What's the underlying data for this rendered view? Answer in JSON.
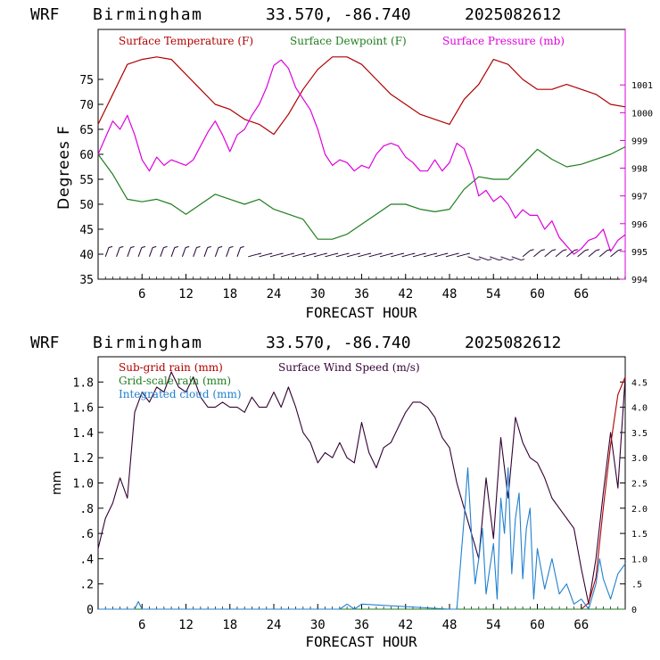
{
  "chart_data": [
    {
      "type": "line",
      "header": {
        "model": "WRF",
        "station": "Birmingham",
        "coords": "33.570, -86.740",
        "run": "2025082612"
      },
      "xlabel": "FORECAST HOUR",
      "ylabel": "Degrees F",
      "xlim": [
        0,
        72
      ],
      "xticks": [
        "6",
        "12",
        "18",
        "24",
        "30",
        "36",
        "42",
        "48",
        "54",
        "60",
        "66"
      ],
      "ylim": [
        35,
        85
      ],
      "yticks": [
        "35",
        "40",
        "45",
        "50",
        "55",
        "60",
        "65",
        "70",
        "75"
      ],
      "y2lim": [
        994,
        1003
      ],
      "y2ticks": [
        "994",
        "995",
        "996",
        "997",
        "998",
        "999",
        "1000",
        "1001"
      ],
      "colors": {
        "temp": "#b00000",
        "dew": "#1e7e1e",
        "pres": "#dd00dd",
        "wind": "#220033",
        "axes": "#000000"
      },
      "series": [
        {
          "name": "Surface Temperature (F)",
          "axis": "left",
          "x": [
            0,
            2,
            4,
            6,
            8,
            10,
            12,
            14,
            16,
            18,
            20,
            22,
            24,
            26,
            28,
            30,
            32,
            34,
            36,
            38,
            40,
            42,
            44,
            46,
            48,
            50,
            52,
            54,
            56,
            58,
            60,
            62,
            64,
            66,
            68,
            70,
            72
          ],
          "values": [
            66,
            72,
            78,
            79,
            79.5,
            79,
            76,
            73,
            70,
            69,
            67,
            66,
            64,
            68,
            73,
            77,
            79.5,
            79.5,
            78,
            75,
            72,
            70,
            68,
            67,
            66,
            71,
            74,
            79,
            78,
            75,
            73,
            73,
            74,
            73,
            72,
            70,
            69.5
          ]
        },
        {
          "name": "Surface Dewpoint (F)",
          "axis": "left",
          "x": [
            0,
            2,
            4,
            6,
            8,
            10,
            12,
            14,
            16,
            18,
            20,
            22,
            24,
            26,
            28,
            30,
            32,
            34,
            36,
            38,
            40,
            42,
            44,
            46,
            48,
            50,
            52,
            54,
            56,
            58,
            60,
            62,
            64,
            66,
            68,
            70,
            72
          ],
          "values": [
            60,
            56,
            51,
            50.5,
            51,
            50,
            48,
            50,
            52,
            51,
            50,
            51,
            49,
            48,
            47,
            43,
            43,
            44,
            46,
            48,
            50,
            50,
            49,
            48.5,
            49,
            53,
            55.5,
            55,
            55,
            58,
            61,
            59,
            57.5,
            58,
            59,
            60,
            61.5
          ]
        },
        {
          "name": "Surface Pressure (mb)",
          "axis": "right",
          "x": [
            0,
            1,
            2,
            3,
            4,
            5,
            6,
            7,
            8,
            9,
            10,
            11,
            12,
            13,
            14,
            15,
            16,
            17,
            18,
            19,
            20,
            21,
            22,
            23,
            24,
            25,
            26,
            27,
            28,
            29,
            30,
            31,
            32,
            33,
            34,
            35,
            36,
            37,
            38,
            39,
            40,
            41,
            42,
            43,
            44,
            45,
            46,
            47,
            48,
            49,
            50,
            51,
            52,
            53,
            54,
            55,
            56,
            57,
            58,
            59,
            60,
            61,
            62,
            63,
            64,
            65,
            66,
            67,
            68,
            69,
            70,
            71,
            72
          ],
          "values": [
            998.5,
            999.1,
            999.7,
            999.4,
            999.9,
            999.2,
            998.3,
            997.9,
            998.4,
            998.1,
            998.3,
            998.2,
            998.1,
            998.3,
            998.8,
            999.3,
            999.7,
            999.2,
            998.6,
            999.2,
            999.4,
            999.9,
            1000.3,
            1000.9,
            1001.7,
            1001.9,
            1001.6,
            1000.9,
            1000.5,
            1000.1,
            999.4,
            998.5,
            998.1,
            998.3,
            998.2,
            997.9,
            998.1,
            998.0,
            998.5,
            998.8,
            998.9,
            998.8,
            998.4,
            998.2,
            997.9,
            997.9,
            998.3,
            997.9,
            998.2,
            998.9,
            998.7,
            998.0,
            997.0,
            997.2,
            996.8,
            997.0,
            996.7,
            996.2,
            996.5,
            996.3,
            996.3,
            995.8,
            996.1,
            995.5,
            995.2,
            994.9,
            995.1,
            995.4,
            995.5,
            995.8,
            995.0,
            995.4,
            995.6
          ]
        }
      ],
      "wind_barbs_note": "",
      "legend": [
        {
          "label": "Surface Temperature (F)",
          "color": "#b00000"
        },
        {
          "label": "Surface Dewpoint (F)",
          "color": "#1e7e1e"
        },
        {
          "label": "Surface Pressure (mb)",
          "color": "#dd00dd"
        }
      ]
    },
    {
      "type": "line",
      "header": {
        "model": "WRF",
        "station": "Birmingham",
        "coords": "33.570, -86.740",
        "run": "2025082612"
      },
      "xlabel": "FORECAST HOUR",
      "ylabel": "mm",
      "xlim": [
        0,
        72
      ],
      "xticks": [
        "6",
        "12",
        "18",
        "24",
        "30",
        "36",
        "42",
        "48",
        "54",
        "60",
        "66"
      ],
      "ylim": [
        0,
        2.0
      ],
      "yticks": [
        "0",
        ".2",
        ".4",
        ".6",
        ".8",
        "1.0",
        "1.2",
        "1.4",
        "1.6",
        "1.8"
      ],
      "y2lim": [
        0,
        5.0
      ],
      "y2ticks": [
        "0",
        ".5",
        "1.0",
        "1.5",
        "2.0",
        "2.5",
        "3.0",
        "3.5",
        "4.0",
        "4.5"
      ],
      "series": [
        {
          "name": "Surface Wind Speed (m/s)",
          "axis": "right",
          "color": "#330033",
          "x": [
            0,
            1,
            2,
            3,
            4,
            5,
            6,
            7,
            8,
            9,
            10,
            11,
            12,
            13,
            14,
            15,
            16,
            17,
            18,
            19,
            20,
            21,
            22,
            23,
            24,
            25,
            26,
            27,
            28,
            29,
            30,
            31,
            32,
            33,
            34,
            35,
            36,
            37,
            38,
            39,
            40,
            41,
            42,
            43,
            44,
            45,
            46,
            47,
            48,
            49,
            50,
            51,
            52,
            53,
            54,
            55,
            56,
            57,
            58,
            59,
            60,
            61,
            62,
            63,
            64,
            65,
            66,
            67,
            68,
            69,
            70,
            71,
            72
          ],
          "values": [
            1.2,
            1.8,
            2.1,
            2.6,
            2.2,
            3.9,
            4.3,
            4.1,
            4.4,
            4.3,
            4.7,
            4.4,
            4.3,
            4.6,
            4.2,
            4.0,
            4.0,
            4.1,
            4.0,
            4.0,
            3.9,
            4.2,
            4.0,
            4.0,
            4.3,
            4.0,
            4.4,
            4.0,
            3.5,
            3.3,
            2.9,
            3.1,
            3.0,
            3.3,
            3.0,
            2.9,
            3.7,
            3.1,
            2.8,
            3.2,
            3.3,
            3.6,
            3.9,
            4.1,
            4.1,
            4.0,
            3.8,
            3.4,
            3.2,
            2.5,
            2.0,
            1.5,
            1.0,
            2.6,
            1.4,
            3.4,
            2.2,
            3.8,
            3.3,
            3.0,
            2.9,
            2.6,
            2.2,
            2.0,
            1.8,
            1.6,
            0.8,
            0.1,
            1.0,
            2.3,
            3.5,
            2.4,
            4.6
          ]
        },
        {
          "name": "Sub-grid rain (mm)",
          "axis": "left",
          "color": "#b00000",
          "x": [
            0,
            65,
            66,
            67,
            68,
            69,
            70,
            71,
            72
          ],
          "values": [
            0,
            0,
            0,
            0.05,
            0.25,
            0.8,
            1.3,
            1.7,
            1.84
          ]
        },
        {
          "name": "Grid-scale rain (mm)",
          "axis": "left",
          "color": "#1e7e1e",
          "x": [
            0,
            72
          ],
          "values": [
            0,
            0
          ]
        },
        {
          "name": "Integrated cloud (mm)",
          "axis": "right",
          "color": "#2080d0",
          "x": [
            0,
            5,
            5.5,
            6,
            7,
            33,
            34,
            35,
            36,
            48,
            49,
            50,
            50.5,
            51,
            51.5,
            52,
            52.5,
            53,
            53.5,
            54,
            54.5,
            55,
            55.5,
            56,
            56.5,
            57,
            57.5,
            58,
            58.5,
            59,
            59.5,
            60,
            61,
            62,
            63,
            64,
            65,
            66,
            67,
            68,
            68.5,
            69,
            70,
            71,
            72
          ],
          "values": [
            0,
            0,
            0.15,
            0,
            0,
            0,
            0.1,
            0,
            0.1,
            0,
            0,
            1.8,
            2.8,
            1.5,
            0.5,
            1.0,
            1.6,
            0.3,
            0.8,
            1.3,
            0.2,
            2.2,
            1.5,
            2.8,
            0.7,
            1.8,
            2.3,
            0.6,
            1.6,
            2.0,
            0.2,
            1.2,
            0.4,
            1.0,
            0.3,
            0.5,
            0.1,
            0.2,
            0,
            0.5,
            1.0,
            0.6,
            0.2,
            0.7,
            0.9
          ]
        }
      ],
      "legend": [
        {
          "label": "Sub-grid rain (mm)",
          "color": "#b00000"
        },
        {
          "label": "Surface Wind Speed (m/s)",
          "color": "#330033"
        },
        {
          "label": "Grid-scale rain (mm)",
          "color": "#1e7e1e"
        },
        {
          "label": "Integrated cloud (mm)",
          "color": "#2080d0"
        }
      ]
    }
  ]
}
